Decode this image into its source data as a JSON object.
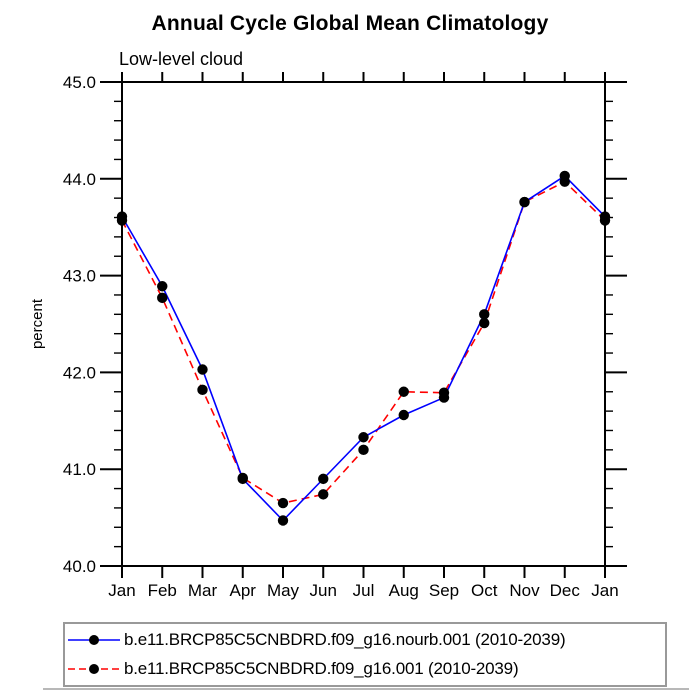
{
  "chart_data": {
    "type": "line",
    "title": "Annual Cycle Global Mean Climatology",
    "subtitle": "Low-level cloud",
    "ylabel": "percent",
    "categories": [
      "Jan",
      "Feb",
      "Mar",
      "Apr",
      "May",
      "Jun",
      "Jul",
      "Aug",
      "Sep",
      "Oct",
      "Nov",
      "Dec",
      "Jan"
    ],
    "ylim": [
      40.0,
      45.0
    ],
    "ytick_major": 1.0,
    "ytick_minor": 0.2,
    "ytick_labels": [
      "40.0",
      "41.0",
      "42.0",
      "43.0",
      "44.0",
      "45.0"
    ],
    "grid": false,
    "legend_position": "bottom",
    "marker": "filled-circle",
    "marker_color": "#000000",
    "series": [
      {
        "name": "b.e11.BRCP85C5CNBDRD.f09_g16.nourb.001 (2010-2039)",
        "color": "#0000ff",
        "style": "solid",
        "values": [
          43.61,
          42.89,
          42.03,
          40.9,
          40.47,
          40.9,
          41.33,
          41.56,
          41.74,
          42.6,
          43.76,
          44.03,
          43.61
        ]
      },
      {
        "name": "b.e11.BRCP85C5CNBDRD.f09_g16.001 (2010-2039)",
        "color": "#ff0000",
        "style": "dashed",
        "values": [
          43.57,
          42.77,
          41.82,
          40.91,
          40.65,
          40.74,
          41.2,
          41.8,
          41.79,
          42.51,
          43.76,
          43.97,
          43.57
        ]
      }
    ]
  },
  "colors": {
    "background": "#ffffff",
    "axis": "#000000",
    "text": "#000000",
    "legend_border": "#999999",
    "series_blue": "#0000ff",
    "series_red": "#ff0000",
    "marker": "#000000"
  }
}
